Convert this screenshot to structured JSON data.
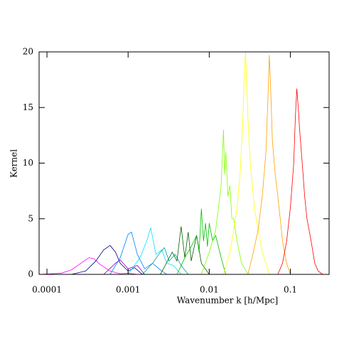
{
  "chart_data": {
    "type": "line",
    "xscale": "log",
    "xlabel": "Wavenumber k [h/Mpc]",
    "ylabel": "Kernel",
    "xlim": [
      8e-05,
      0.3
    ],
    "ylim": [
      0,
      20
    ],
    "xticks": [
      0.0001,
      0.001,
      0.01,
      0.1
    ],
    "yticks": [
      0,
      5,
      10,
      15,
      20
    ],
    "series": [
      {
        "color": "#ff00ff",
        "x": [
          8e-05,
          0.00015,
          0.0002,
          0.00025,
          0.0003,
          0.00033,
          0.00038,
          0.00045,
          0.0006,
          0.0008,
          0.001,
          0.0013
        ],
        "values": [
          0,
          0.1,
          0.4,
          0.9,
          1.3,
          1.5,
          1.4,
          0.9,
          0.3,
          0.05,
          0.1,
          0
        ]
      },
      {
        "color": "#000080",
        "x": [
          0.0002,
          0.0003,
          0.0004,
          0.0005,
          0.0006,
          0.0007,
          0.0008,
          0.001,
          0.0012,
          0.0015
        ],
        "values": [
          0,
          0.3,
          1.2,
          2.2,
          2.6,
          2.0,
          1.0,
          0.3,
          0.6,
          0
        ]
      },
      {
        "color": "#8000c0",
        "x": [
          0.0005,
          0.0007,
          0.0008,
          0.001,
          0.0013,
          0.0016
        ],
        "values": [
          0,
          1.0,
          1.3,
          0.5,
          0.8,
          0
        ]
      },
      {
        "color": "#0080ff",
        "x": [
          0.0006,
          0.0008,
          0.001,
          0.0011,
          0.0013,
          0.0016,
          0.002,
          0.0025,
          0.003
        ],
        "values": [
          0,
          1.5,
          3.6,
          3.8,
          1.8,
          0.5,
          1.0,
          0.4,
          0
        ]
      },
      {
        "color": "#00e0ff",
        "x": [
          0.001,
          0.0014,
          0.0017,
          0.0019,
          0.0022,
          0.0026,
          0.003,
          0.0036,
          0.0045
        ],
        "values": [
          0,
          1.5,
          3.0,
          4.2,
          1.8,
          2.2,
          1.0,
          0.8,
          0
        ]
      },
      {
        "color": "#00a0a0",
        "x": [
          0.0015,
          0.002,
          0.0025,
          0.0028,
          0.0032,
          0.0038,
          0.0045,
          0.0055
        ],
        "values": [
          0,
          1.0,
          2.0,
          2.4,
          1.2,
          1.8,
          0.8,
          0
        ]
      },
      {
        "color": "#006000",
        "x": [
          0.0025,
          0.0035,
          0.004,
          0.0045,
          0.005,
          0.0055,
          0.006,
          0.007,
          0.008,
          0.01
        ],
        "values": [
          0,
          2.0,
          1.2,
          4.3,
          1.5,
          3.8,
          1.2,
          3.5,
          1.0,
          0
        ]
      },
      {
        "color": "#00c000",
        "x": [
          0.004,
          0.005,
          0.006,
          0.007,
          0.0075,
          0.008,
          0.0085,
          0.009,
          0.0095,
          0.01,
          0.011,
          0.012,
          0.014,
          0.016
        ],
        "values": [
          0,
          1.5,
          2.5,
          3.5,
          2.0,
          5.9,
          3.0,
          4.6,
          2.5,
          4.6,
          3.0,
          3.5,
          1.5,
          0
        ]
      },
      {
        "color": "#80ff00",
        "x": [
          0.008,
          0.01,
          0.012,
          0.013,
          0.014,
          0.015,
          0.0155,
          0.016,
          0.017,
          0.018,
          0.019,
          0.02,
          0.022,
          0.025,
          0.03
        ],
        "values": [
          0,
          2,
          4,
          6,
          8,
          13,
          9,
          11,
          7,
          8,
          5,
          5,
          3,
          1,
          0
        ]
      },
      {
        "color": "#ffff00",
        "x": [
          0.015,
          0.018,
          0.02,
          0.022,
          0.024,
          0.026,
          0.027,
          0.028,
          0.029,
          0.03,
          0.032,
          0.034,
          0.036,
          0.04,
          0.045,
          0.05,
          0.055
        ],
        "values": [
          0,
          2,
          4,
          6,
          9,
          14,
          18,
          20,
          17,
          14,
          10,
          8,
          6,
          4,
          2,
          1,
          0
        ]
      },
      {
        "color": "#ffa000",
        "x": [
          0.03,
          0.035,
          0.04,
          0.045,
          0.05,
          0.053,
          0.055,
          0.057,
          0.06,
          0.065,
          0.07,
          0.075,
          0.08,
          0.09,
          0.1
        ],
        "values": [
          0,
          2,
          4,
          7,
          11,
          16,
          19.7,
          17,
          12,
          9,
          7,
          5,
          3,
          1,
          0
        ]
      },
      {
        "color": "#ff0000",
        "x": [
          0.07,
          0.08,
          0.09,
          0.1,
          0.11,
          0.115,
          0.12,
          0.125,
          0.13,
          0.14,
          0.15,
          0.16,
          0.18,
          0.2,
          0.22,
          0.25
        ],
        "values": [
          0,
          1,
          3,
          6,
          10,
          14,
          16.7,
          15,
          13,
          10,
          7,
          5,
          3,
          1,
          0.3,
          0
        ]
      }
    ]
  }
}
